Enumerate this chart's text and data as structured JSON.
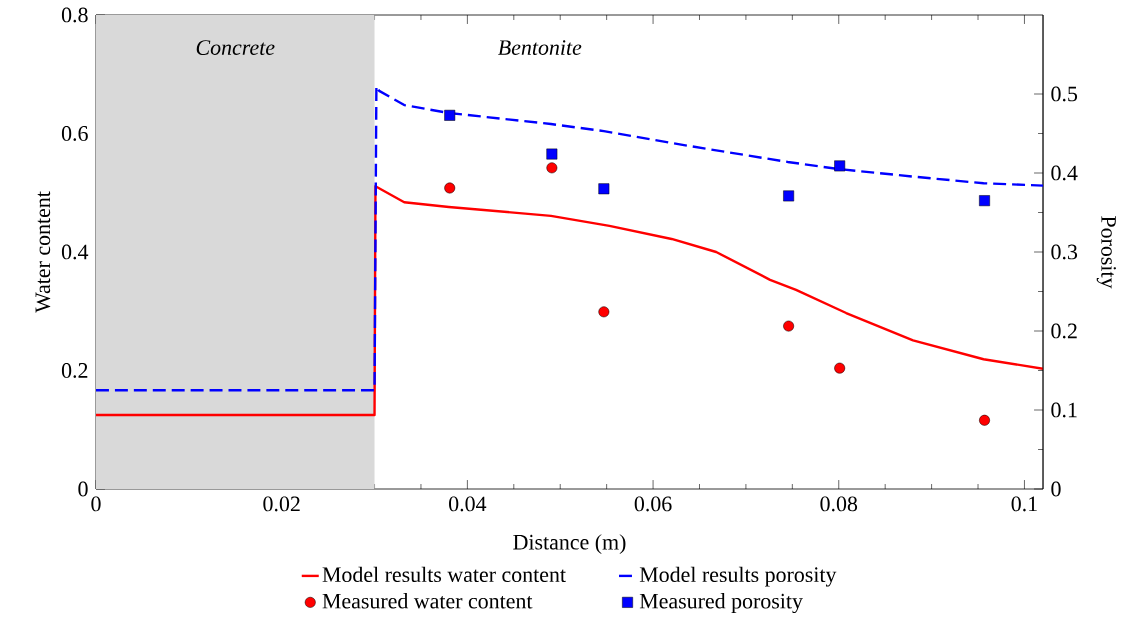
{
  "chart_data": {
    "type": "line",
    "xlabel": "Distance (m)",
    "ylabel": "Water content",
    "y2label": "Porosity",
    "xlim": [
      0,
      0.102
    ],
    "xticks": [
      0,
      0.02,
      0.04,
      0.06,
      0.08,
      0.1
    ],
    "ylim": [
      0,
      0.8
    ],
    "yticks": [
      0,
      0.2,
      0.4,
      0.6,
      0.8
    ],
    "y2lim": [
      0,
      0.6
    ],
    "y2ticks": [
      0,
      0.1,
      0.2,
      0.3,
      0.4,
      0.5
    ],
    "legend": "bottom",
    "bands": [
      {
        "axis": "x",
        "from": 0,
        "to": 0.03,
        "label": "Concrete",
        "color": "#d9d9d9"
      }
    ],
    "annotations": [
      "Bentonite"
    ],
    "series": [
      {
        "name": "Model results water content",
        "color": "#ff0000",
        "line_style": "solid",
        "x": [
          0,
          0.03,
          0.0301,
          0.0332,
          0.038,
          0.049,
          0.0553,
          0.062,
          0.0668,
          0.0726,
          0.0754,
          0.0808,
          0.088,
          0.0956,
          0.102
        ],
        "values": [
          0.125,
          0.125,
          0.511,
          0.484,
          0.476,
          0.461,
          0.444,
          0.422,
          0.4,
          0.353,
          0.336,
          0.297,
          0.251,
          0.219,
          0.203
        ]
      },
      {
        "name": "Model results porosity",
        "axis": "y2",
        "color": "#0000ff",
        "line_style": "dashed",
        "x": [
          0,
          0.03,
          0.0302,
          0.0305,
          0.0332,
          0.038,
          0.049,
          0.0547,
          0.064,
          0.0745,
          0.08,
          0.0884,
          0.0956,
          0.102
        ],
        "values": [
          0.125,
          0.125,
          0.51,
          0.504,
          0.486,
          0.476,
          0.462,
          0.453,
          0.434,
          0.414,
          0.405,
          0.395,
          0.387,
          0.384
        ]
      },
      {
        "name": "Measured water content",
        "type": "scatter",
        "marker": "circle",
        "color": "#ff0000",
        "x": [
          0.0381,
          0.0491,
          0.0547,
          0.0746,
          0.0801,
          0.0957
        ],
        "values": [
          0.508,
          0.542,
          0.299,
          0.275,
          0.204,
          0.116
        ]
      },
      {
        "name": "Measured porosity",
        "type": "scatter",
        "marker": "square",
        "axis": "y2",
        "color": "#0000ff",
        "x": [
          0.0381,
          0.0491,
          0.0547,
          0.0746,
          0.0801,
          0.0957
        ],
        "values": [
          0.473,
          0.424,
          0.38,
          0.371,
          0.409,
          0.365
        ]
      }
    ]
  }
}
